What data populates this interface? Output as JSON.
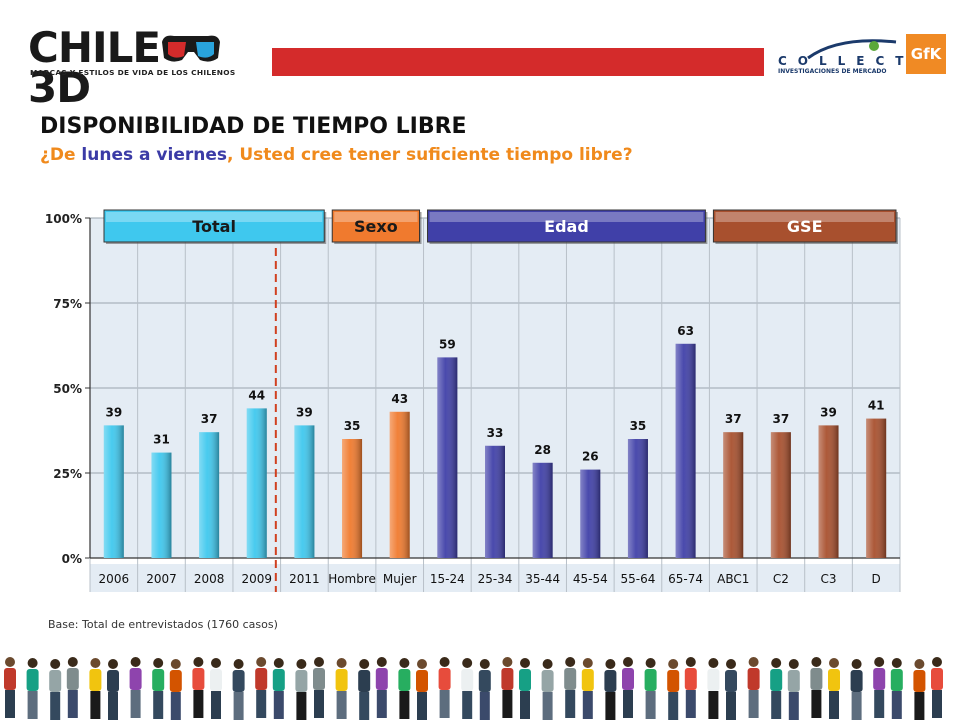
{
  "header": {
    "logo_text": "CHILE",
    "logo_suffix": "3D",
    "logo_subtitle": "MARCAS Y ESTILOS DE VIDA DE LOS CHILENOS",
    "collect_text": "COLLECT",
    "collect_subtitle": "INVESTIGACIONES DE MERCADO",
    "gfk_text": "GfK"
  },
  "title": "DISPONIBILIDAD DE TIEMPO LIBRE",
  "subtitle": {
    "part1": "¿De ",
    "part2": "lunes a viernes",
    "part3": ", Usted cree tener suficiente tiempo libre?"
  },
  "base_note": "Base: Total de entrevistados (1760 casos)",
  "colors": {
    "total": "#3fc8ee",
    "sexo": "#f07a2e",
    "edad": "#4040a8",
    "gse": "#a8502e",
    "plot_bg": "#e4ecf4",
    "divider": "#d04020"
  },
  "chart_data": {
    "type": "bar",
    "categories": [
      "2006",
      "2007",
      "2008",
      "2009",
      "2011",
      "Hombre",
      "Mujer",
      "15-24",
      "25-34",
      "35-44",
      "45-54",
      "55-64",
      "65-74",
      "ABC1",
      "C2",
      "C3",
      "D"
    ],
    "values": [
      39,
      31,
      37,
      44,
      39,
      35,
      43,
      59,
      33,
      28,
      26,
      35,
      63,
      37,
      37,
      39,
      41
    ],
    "groups": [
      {
        "label": "Total",
        "color": "#3fc8ee",
        "count": 5
      },
      {
        "label": "Sexo",
        "color": "#f07a2e",
        "count": 2
      },
      {
        "label": "Edad",
        "color": "#4040a8",
        "count": 6
      },
      {
        "label": "GSE",
        "color": "#a8502e",
        "count": 4
      }
    ],
    "yticks": [
      "100%",
      "75%",
      "50%",
      "25%",
      "0%"
    ],
    "ylim": [
      0,
      100
    ],
    "grid": true
  }
}
